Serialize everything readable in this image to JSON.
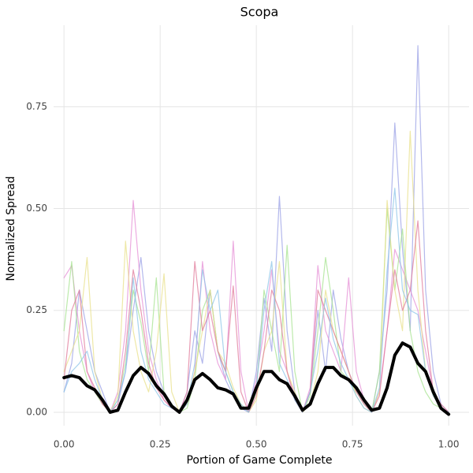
{
  "chart_data": {
    "type": "line",
    "title": "Scopa",
    "xlabel": "Portion of Game Complete",
    "ylabel": "Normalized Spread",
    "x": [
      0,
      0.02,
      0.04,
      0.06,
      0.08,
      0.1,
      0.12,
      0.14,
      0.16,
      0.18,
      0.2,
      0.22,
      0.24,
      0.26,
      0.28,
      0.3,
      0.32,
      0.34,
      0.36,
      0.38,
      0.4,
      0.42,
      0.44,
      0.46,
      0.48,
      0.5,
      0.52,
      0.54,
      0.56,
      0.58,
      0.6,
      0.62,
      0.64,
      0.66,
      0.68,
      0.7,
      0.72,
      0.74,
      0.76,
      0.78,
      0.8,
      0.82,
      0.84,
      0.86,
      0.88,
      0.9,
      0.92,
      0.94,
      0.96,
      0.98,
      1.0
    ],
    "series": [
      {
        "color": "#9aa0e6",
        "values": [
          0.05,
          0.12,
          0.3,
          0.2,
          0.1,
          0.05,
          0,
          0.02,
          0.1,
          0.25,
          0.38,
          0.2,
          0.1,
          0.05,
          0.02,
          0,
          0.05,
          0.2,
          0.12,
          0.3,
          0.15,
          0.08,
          0.04,
          0.01,
          0,
          0.1,
          0.28,
          0.15,
          0.53,
          0.2,
          0.05,
          0,
          0.05,
          0.25,
          0.1,
          0.3,
          0.18,
          0.1,
          0.05,
          0.02,
          0,
          0.1,
          0.3,
          0.71,
          0.4,
          0.2,
          0.9,
          0.3,
          0.1,
          0.02,
          0
        ]
      },
      {
        "color": "#e58fd6",
        "values": [
          0.33,
          0.36,
          0.2,
          0.1,
          0.05,
          0.02,
          0,
          0.05,
          0.2,
          0.52,
          0.3,
          0.15,
          0.08,
          0.03,
          0.01,
          0,
          0.02,
          0.1,
          0.37,
          0.2,
          0.12,
          0.08,
          0.42,
          0.1,
          0,
          0.08,
          0.2,
          0.35,
          0.15,
          0.1,
          0.04,
          0,
          0.06,
          0.36,
          0.2,
          0.15,
          0.1,
          0.33,
          0.1,
          0.03,
          0,
          0.05,
          0.2,
          0.4,
          0.35,
          0.3,
          0.25,
          0.15,
          0.05,
          0.01,
          0
        ]
      },
      {
        "color": "#a6e38f",
        "values": [
          0.2,
          0.37,
          0.15,
          0.08,
          0.05,
          0.02,
          0,
          0.03,
          0.12,
          0.3,
          0.22,
          0.1,
          0.33,
          0.05,
          0.02,
          0,
          0.01,
          0.08,
          0.25,
          0.3,
          0.15,
          0.1,
          0.05,
          0.02,
          0,
          0.05,
          0.3,
          0.2,
          0.1,
          0.41,
          0.1,
          0,
          0.04,
          0.2,
          0.38,
          0.25,
          0.1,
          0.08,
          0.05,
          0.02,
          0,
          0.1,
          0.5,
          0.3,
          0.45,
          0.2,
          0.1,
          0.05,
          0.02,
          0.01,
          0
        ]
      },
      {
        "color": "#e8e08a",
        "values": [
          0.1,
          0.15,
          0.2,
          0.38,
          0.1,
          0.03,
          0,
          0.04,
          0.42,
          0.2,
          0.1,
          0.05,
          0.15,
          0.34,
          0.05,
          0,
          0.02,
          0.1,
          0.2,
          0.3,
          0.15,
          0.12,
          0.06,
          0.02,
          0,
          0.03,
          0.15,
          0.2,
          0.37,
          0.1,
          0.05,
          0,
          0.02,
          0.1,
          0.3,
          0.2,
          0.15,
          0.1,
          0.04,
          0.01,
          0,
          0.05,
          0.52,
          0.3,
          0.2,
          0.69,
          0.3,
          0.1,
          0.04,
          0.01,
          0
        ]
      },
      {
        "color": "#e07a9a",
        "values": [
          0.08,
          0.25,
          0.3,
          0.1,
          0.06,
          0.02,
          0,
          0.02,
          0.15,
          0.35,
          0.25,
          0.12,
          0.06,
          0.03,
          0.01,
          0,
          0.05,
          0.37,
          0.2,
          0.25,
          0.15,
          0.1,
          0.31,
          0.05,
          0,
          0.04,
          0.15,
          0.3,
          0.25,
          0.1,
          0.03,
          0,
          0.05,
          0.3,
          0.25,
          0.2,
          0.15,
          0.1,
          0.05,
          0.02,
          0,
          0.04,
          0.2,
          0.35,
          0.25,
          0.3,
          0.47,
          0.2,
          0.05,
          0.02,
          0
        ]
      },
      {
        "color": "#8cc4e8",
        "values": [
          0.05,
          0.1,
          0.12,
          0.15,
          0.08,
          0.03,
          0,
          0.03,
          0.1,
          0.33,
          0.15,
          0.08,
          0.05,
          0.02,
          0.01,
          0,
          0.02,
          0.12,
          0.35,
          0.25,
          0.3,
          0.1,
          0.05,
          0.02,
          0,
          0.06,
          0.25,
          0.37,
          0.12,
          0.08,
          0.03,
          0,
          0.05,
          0.15,
          0.28,
          0.18,
          0.12,
          0.08,
          0.04,
          0.01,
          0,
          0.06,
          0.35,
          0.55,
          0.3,
          0.25,
          0.24,
          0.1,
          0.04,
          0.01,
          0
        ]
      },
      {
        "color": "#000000",
        "line_width": 4,
        "values": [
          0.085,
          0.09,
          0.085,
          0.065,
          0.055,
          0.03,
          0.0,
          0.005,
          0.05,
          0.09,
          0.11,
          0.095,
          0.065,
          0.045,
          0.015,
          0.0,
          0.03,
          0.08,
          0.095,
          0.08,
          0.06,
          0.055,
          0.045,
          0.01,
          0.01,
          0.06,
          0.1,
          0.1,
          0.08,
          0.07,
          0.04,
          0.005,
          0.02,
          0.07,
          0.11,
          0.11,
          0.09,
          0.08,
          0.06,
          0.03,
          0.005,
          0.01,
          0.06,
          0.14,
          0.17,
          0.16,
          0.12,
          0.1,
          0.05,
          0.01,
          -0.005
        ]
      }
    ],
    "xlim": [
      -0.027,
      1.053
    ],
    "ylim": [
      -0.033,
      0.95
    ],
    "xticks": [
      {
        "value": 0,
        "label": "0.00"
      },
      {
        "value": 0.25,
        "label": "0.25"
      },
      {
        "value": 0.5,
        "label": "0.50"
      },
      {
        "value": 0.75,
        "label": "0.75"
      },
      {
        "value": 1,
        "label": "1.00"
      }
    ],
    "yticks": [
      {
        "value": 0,
        "label": "0.00"
      },
      {
        "value": 0.25,
        "label": "0.25"
      },
      {
        "value": 0.5,
        "label": "0.50"
      },
      {
        "value": 0.75,
        "label": "0.75"
      }
    ],
    "grid": true
  }
}
